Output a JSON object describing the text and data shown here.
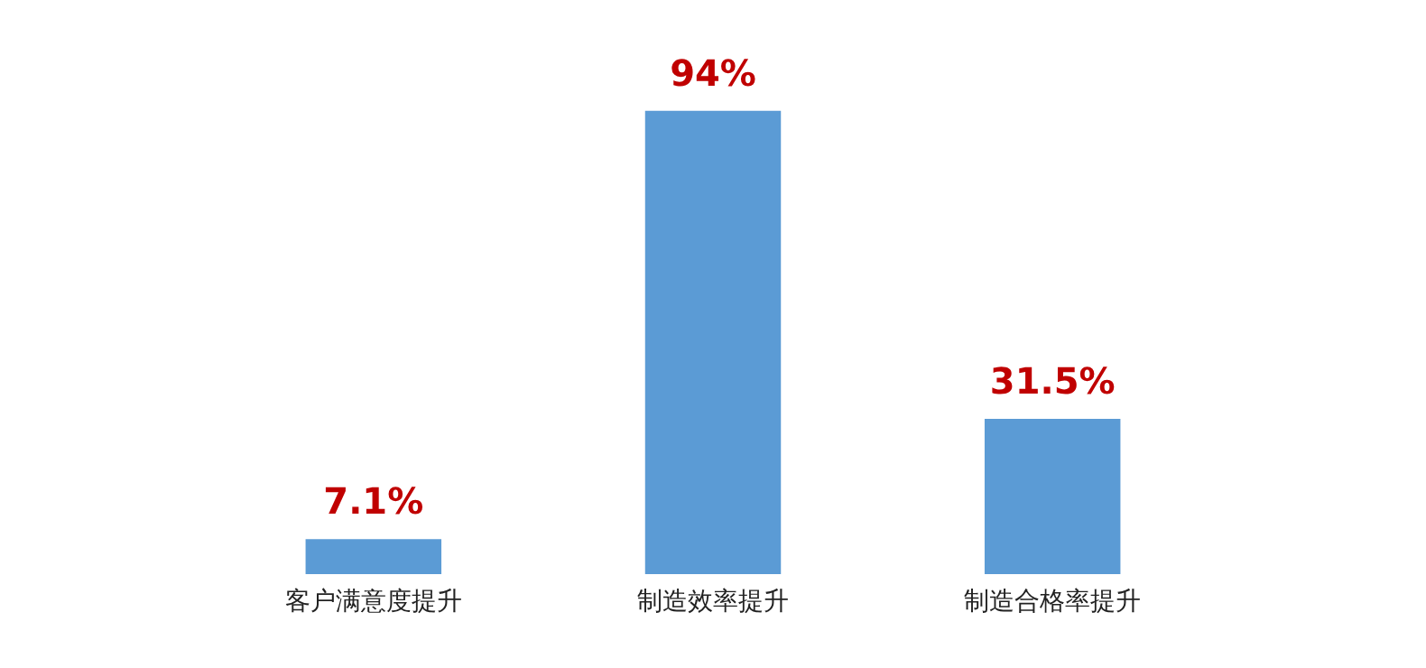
{
  "chart_data": {
    "type": "bar",
    "categories": [
      "客户满意度提升",
      "制造效率提升",
      "制造合格率提升"
    ],
    "values": [
      7.1,
      94,
      31.5
    ],
    "value_labels": [
      "7.1%",
      "94%",
      "31.5%"
    ],
    "color": "#5b9bd5"
  }
}
